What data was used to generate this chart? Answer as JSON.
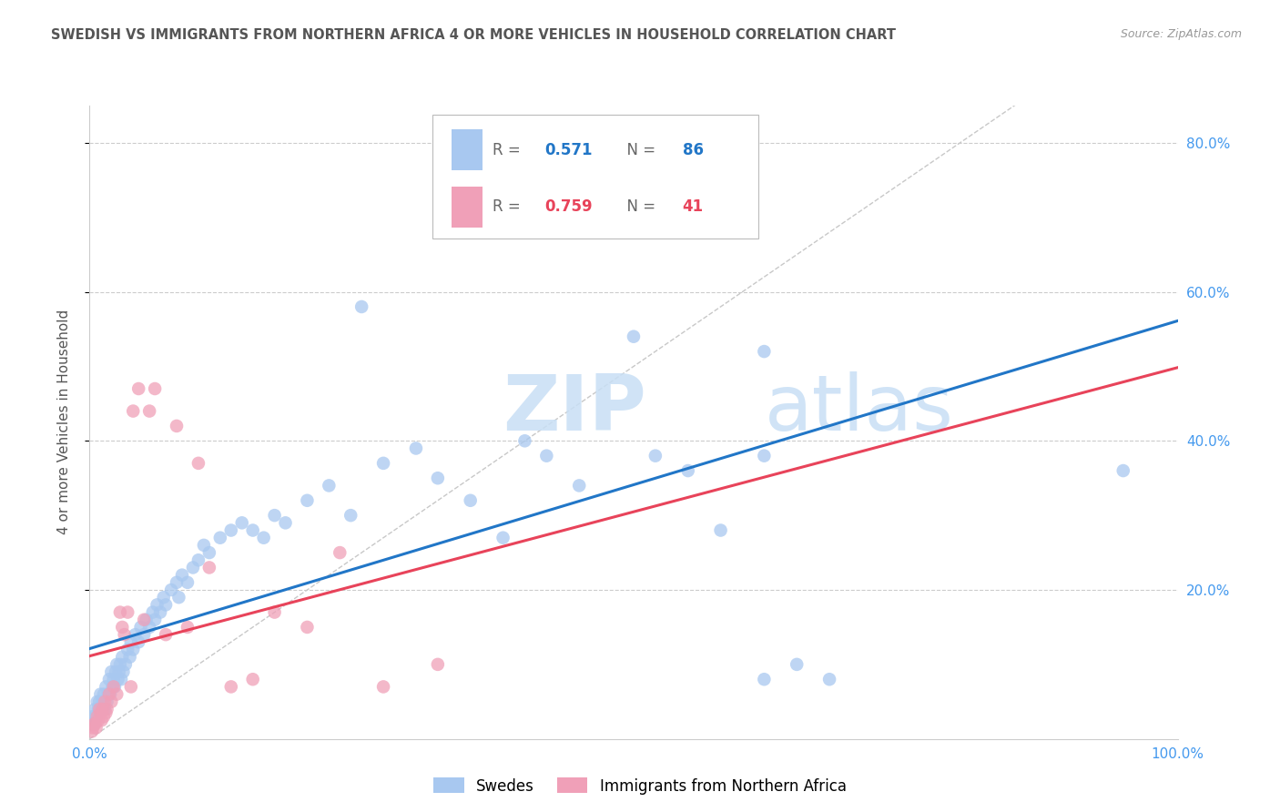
{
  "title": "SWEDISH VS IMMIGRANTS FROM NORTHERN AFRICA 4 OR MORE VEHICLES IN HOUSEHOLD CORRELATION CHART",
  "source": "Source: ZipAtlas.com",
  "ylabel": "4 or more Vehicles in Household",
  "xlim": [
    0.0,
    1.0
  ],
  "ylim": [
    0.0,
    0.85
  ],
  "swedes_color": "#a8c8f0",
  "immigrants_color": "#f0a0b8",
  "trendline_swedes_color": "#2176c7",
  "trendline_immigrants_color": "#e8435a",
  "diagonal_color": "#c8c8c8",
  "background_color": "#ffffff",
  "grid_color": "#cccccc",
  "title_color": "#555555",
  "axis_label_color": "#555555",
  "tick_label_color": "#4499ee",
  "watermark_color": "#c8dff5",
  "swedes_x": [
    0.002,
    0.003,
    0.004,
    0.005,
    0.006,
    0.007,
    0.008,
    0.009,
    0.01,
    0.01,
    0.012,
    0.013,
    0.014,
    0.015,
    0.016,
    0.017,
    0.018,
    0.019,
    0.02,
    0.021,
    0.022,
    0.023,
    0.024,
    0.025,
    0.026,
    0.027,
    0.028,
    0.029,
    0.03,
    0.031,
    0.033,
    0.035,
    0.037,
    0.038,
    0.04,
    0.042,
    0.045,
    0.047,
    0.05,
    0.052,
    0.055,
    0.058,
    0.06,
    0.062,
    0.065,
    0.068,
    0.07,
    0.075,
    0.08,
    0.082,
    0.085,
    0.09,
    0.095,
    0.1,
    0.105,
    0.11,
    0.12,
    0.13,
    0.14,
    0.15,
    0.16,
    0.17,
    0.18,
    0.2,
    0.22,
    0.24,
    0.25,
    0.27,
    0.3,
    0.32,
    0.35,
    0.38,
    0.4,
    0.42,
    0.45,
    0.5,
    0.52,
    0.55,
    0.58,
    0.62,
    0.65,
    0.68,
    0.58,
    0.62,
    0.95,
    0.62
  ],
  "swedes_y": [
    0.02,
    0.03,
    0.02,
    0.04,
    0.03,
    0.05,
    0.04,
    0.05,
    0.06,
    0.04,
    0.05,
    0.06,
    0.04,
    0.07,
    0.05,
    0.06,
    0.08,
    0.06,
    0.09,
    0.07,
    0.08,
    0.07,
    0.09,
    0.1,
    0.08,
    0.09,
    0.1,
    0.08,
    0.11,
    0.09,
    0.1,
    0.12,
    0.11,
    0.13,
    0.12,
    0.14,
    0.13,
    0.15,
    0.14,
    0.16,
    0.15,
    0.17,
    0.16,
    0.18,
    0.17,
    0.19,
    0.18,
    0.2,
    0.21,
    0.19,
    0.22,
    0.21,
    0.23,
    0.24,
    0.26,
    0.25,
    0.27,
    0.28,
    0.29,
    0.28,
    0.27,
    0.3,
    0.29,
    0.32,
    0.34,
    0.3,
    0.58,
    0.37,
    0.39,
    0.35,
    0.32,
    0.27,
    0.4,
    0.38,
    0.34,
    0.54,
    0.38,
    0.36,
    0.28,
    0.38,
    0.1,
    0.08,
    0.7,
    0.52,
    0.36,
    0.08
  ],
  "immigrants_x": [
    0.002,
    0.003,
    0.004,
    0.005,
    0.006,
    0.007,
    0.008,
    0.009,
    0.01,
    0.011,
    0.012,
    0.013,
    0.014,
    0.015,
    0.016,
    0.018,
    0.02,
    0.022,
    0.025,
    0.028,
    0.03,
    0.032,
    0.035,
    0.038,
    0.04,
    0.045,
    0.05,
    0.055,
    0.06,
    0.07,
    0.08,
    0.09,
    0.1,
    0.11,
    0.13,
    0.15,
    0.17,
    0.2,
    0.23,
    0.27,
    0.32
  ],
  "immigrants_y": [
    0.01,
    0.015,
    0.02,
    0.02,
    0.015,
    0.03,
    0.025,
    0.04,
    0.035,
    0.025,
    0.04,
    0.03,
    0.05,
    0.035,
    0.04,
    0.06,
    0.05,
    0.07,
    0.06,
    0.17,
    0.15,
    0.14,
    0.17,
    0.07,
    0.44,
    0.47,
    0.16,
    0.44,
    0.47,
    0.14,
    0.42,
    0.15,
    0.37,
    0.23,
    0.07,
    0.08,
    0.17,
    0.15,
    0.25,
    0.07,
    0.1
  ]
}
